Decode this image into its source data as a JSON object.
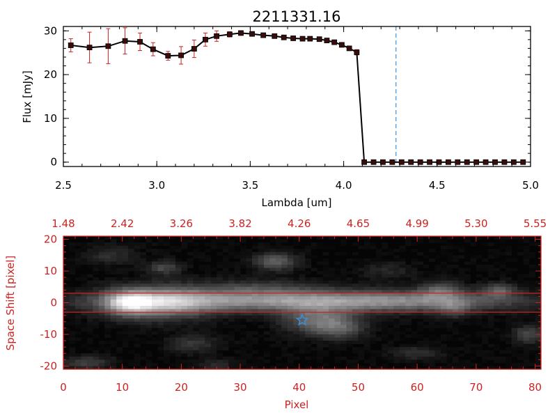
{
  "chart_data": [
    {
      "type": "line",
      "title": "2211331.16",
      "xlabel": "Lambda [um]",
      "ylabel": "Flux [mJy]",
      "xlim": [
        2.5,
        5.0
      ],
      "ylim": [
        -1,
        31
      ],
      "xticks": [
        "2.5",
        "3.0",
        "3.5",
        "4.0",
        "4.5",
        "5.0"
      ],
      "xtick_values": [
        2.5,
        3.0,
        3.5,
        4.0,
        4.5,
        5.0
      ],
      "yticks": [
        "0",
        "10",
        "20",
        "30"
      ],
      "ytick_values": [
        0,
        10,
        20,
        30
      ],
      "vertical_line": {
        "x": 4.28,
        "style": "dashed",
        "color": "#3b8fd8"
      },
      "series": [
        {
          "name": "flux",
          "x": [
            2.54,
            2.64,
            2.74,
            2.83,
            2.91,
            2.98,
            3.06,
            3.13,
            3.2,
            3.26,
            3.32,
            3.39,
            3.45,
            3.51,
            3.57,
            3.63,
            3.68,
            3.73,
            3.78,
            3.82,
            3.87,
            3.91,
            3.95,
            3.99,
            4.03,
            4.07,
            4.11,
            4.16,
            4.21,
            4.26,
            4.31,
            4.36,
            4.41,
            4.46,
            4.51,
            4.56,
            4.61,
            4.66,
            4.71,
            4.76,
            4.81,
            4.86,
            4.91,
            4.96
          ],
          "y": [
            26.7,
            26.2,
            26.5,
            27.7,
            27.5,
            25.8,
            24.3,
            24.4,
            25.9,
            28.0,
            28.8,
            29.2,
            29.5,
            29.3,
            29.0,
            28.8,
            28.5,
            28.3,
            28.2,
            28.2,
            28.1,
            27.8,
            27.4,
            26.8,
            26.0,
            25.1,
            0,
            0,
            0,
            0,
            0,
            0,
            0,
            0,
            0,
            0,
            0,
            0,
            0,
            0,
            0,
            0,
            0,
            0
          ],
          "yerr": [
            1.5,
            3.5,
            4.0,
            3.0,
            2.0,
            1.5,
            1.0,
            2.0,
            2.0,
            1.5,
            1.2,
            0.6,
            0.5,
            0.5,
            0.4,
            0.4,
            0.4,
            0.4,
            0.4,
            0.4,
            0.4,
            0.4,
            0.4,
            0.5,
            0.5,
            0.6,
            0,
            0,
            0,
            0,
            0,
            0,
            0,
            0,
            0,
            0,
            0,
            0,
            0,
            0,
            0,
            0,
            0,
            0
          ]
        }
      ]
    },
    {
      "type": "heatmap",
      "xlabel": "Pixel",
      "ylabel": "Space Shift [pixel]",
      "xlim": [
        0,
        81
      ],
      "ylim": [
        -21,
        21
      ],
      "xticks": [
        "0",
        "10",
        "20",
        "30",
        "40",
        "50",
        "60",
        "70",
        "80"
      ],
      "xtick_values": [
        0,
        10,
        20,
        30,
        40,
        50,
        60,
        70,
        80
      ],
      "yticks": [
        "-20",
        "-10",
        "0",
        "10",
        "20"
      ],
      "ytick_values": [
        -20,
        -10,
        0,
        10,
        20
      ],
      "top_axis_labels": [
        "1.48",
        "2.42",
        "3.26",
        "3.82",
        "4.26",
        "4.65",
        "4.99",
        "5.30",
        "5.55"
      ],
      "horizontal_lines": [
        3,
        -3
      ],
      "star_marker": {
        "x": 40.5,
        "y": -5.5,
        "color": "#3b8fd8"
      },
      "blobs": [
        {
          "x": 16,
          "y": 0,
          "sx": 6,
          "sy": 3.5,
          "v": 0.55
        },
        {
          "x": 11,
          "y": 0,
          "sx": 2.5,
          "sy": 2.5,
          "v": 0.45
        },
        {
          "x": 35,
          "y": 0.5,
          "sx": 20,
          "sy": 2.3,
          "v": 0.5
        },
        {
          "x": 60,
          "y": 0.5,
          "sx": 14,
          "sy": 2.2,
          "v": 0.28
        },
        {
          "x": 43,
          "y": -5.5,
          "sx": 4,
          "sy": 3,
          "v": 0.38
        },
        {
          "x": 47,
          "y": -8,
          "sx": 3,
          "sy": 2.5,
          "v": 0.25
        },
        {
          "x": 36,
          "y": 13,
          "sx": 2.5,
          "sy": 2,
          "v": 0.35
        },
        {
          "x": 17,
          "y": 11,
          "sx": 2,
          "sy": 1.5,
          "v": 0.25
        },
        {
          "x": 33,
          "y": 4.5,
          "sx": 8,
          "sy": 2,
          "v": 0.2
        },
        {
          "x": 64,
          "y": 4,
          "sx": 2.5,
          "sy": 2,
          "v": 0.3
        },
        {
          "x": 66,
          "y": -2,
          "sx": 2,
          "sy": 2,
          "v": 0.2
        },
        {
          "x": 74,
          "y": 4,
          "sx": 2,
          "sy": 1.5,
          "v": 0.3
        },
        {
          "x": 79,
          "y": -10,
          "sx": 2,
          "sy": 2,
          "v": 0.25
        },
        {
          "x": 4,
          "y": -19,
          "sx": 3,
          "sy": 1.5,
          "v": 0.22
        },
        {
          "x": 22,
          "y": -13,
          "sx": 3,
          "sy": 2,
          "v": 0.18
        },
        {
          "x": 60,
          "y": -16,
          "sx": 3,
          "sy": 1.5,
          "v": 0.16
        },
        {
          "x": 26,
          "y": -20,
          "sx": 2,
          "sy": 1.5,
          "v": 0.14
        },
        {
          "x": 8,
          "y": 15,
          "sx": 3,
          "sy": 2,
          "v": 0.15
        },
        {
          "x": 55,
          "y": 10,
          "sx": 3,
          "sy": 2,
          "v": 0.12
        }
      ]
    }
  ]
}
